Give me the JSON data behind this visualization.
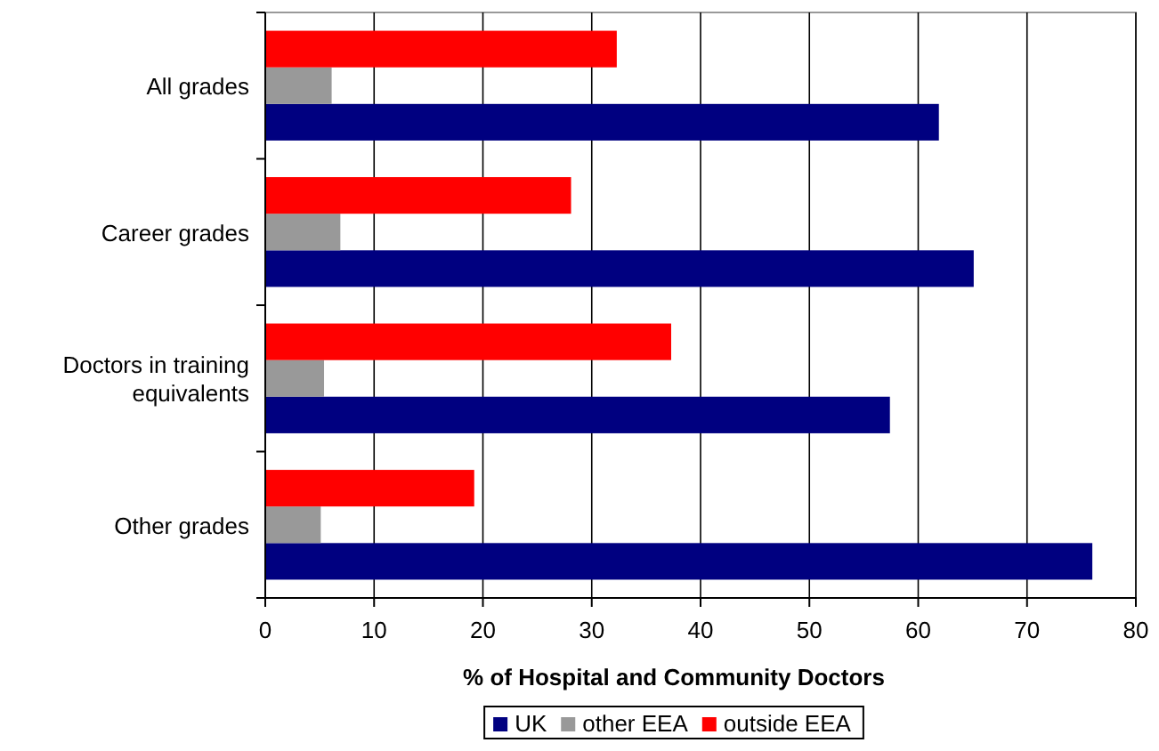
{
  "chart_data": {
    "type": "bar",
    "orientation": "horizontal",
    "xlabel": "% of Hospital and Community Doctors",
    "categories": [
      "All grades",
      "Career grades",
      "Doctors in training equivalents",
      "Other grades"
    ],
    "series": [
      {
        "name": "UK",
        "color": "#000080",
        "values": [
          61.9,
          65.1,
          57.4,
          76.0
        ]
      },
      {
        "name": "other EEA",
        "color": "#999999",
        "values": [
          6.1,
          6.9,
          5.4,
          5.1
        ]
      },
      {
        "name": "outside EEA",
        "color": "#ff0000",
        "values": [
          32.3,
          28.1,
          37.3,
          19.2
        ]
      }
    ],
    "xlim": [
      0,
      80
    ],
    "xticks": [
      0,
      10,
      20,
      30,
      40,
      50,
      60,
      70,
      80
    ],
    "grid": "x",
    "legend": "bottom"
  }
}
